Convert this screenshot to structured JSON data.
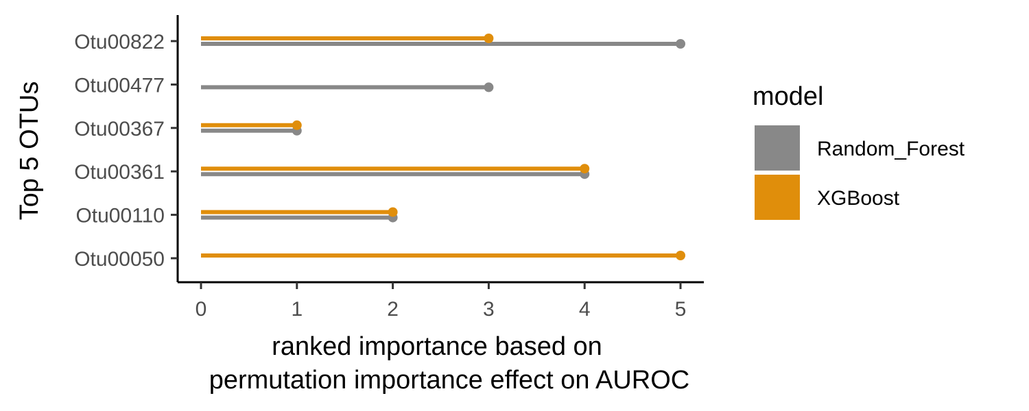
{
  "chart_data": {
    "type": "lollipop",
    "xlabel": [
      "ranked importance based on",
      "permutation importance effect on AUROC"
    ],
    "ylabel": "Top 5 OTUs",
    "xlim": [
      0,
      5
    ],
    "xticks": [
      0,
      1,
      2,
      3,
      4,
      5
    ],
    "categories": [
      "Otu00822",
      "Otu00477",
      "Otu00367",
      "Otu00361",
      "Otu00110",
      "Otu00050"
    ],
    "legend_title": "model",
    "legend_position": "right",
    "grid": false,
    "series": [
      {
        "name": "Random_Forest",
        "color": "#888888",
        "values": [
          5,
          3,
          1,
          4,
          2,
          null
        ]
      },
      {
        "name": "XGBoost",
        "color": "#E08E0B",
        "values": [
          3,
          null,
          1,
          4,
          2,
          5
        ]
      }
    ]
  }
}
